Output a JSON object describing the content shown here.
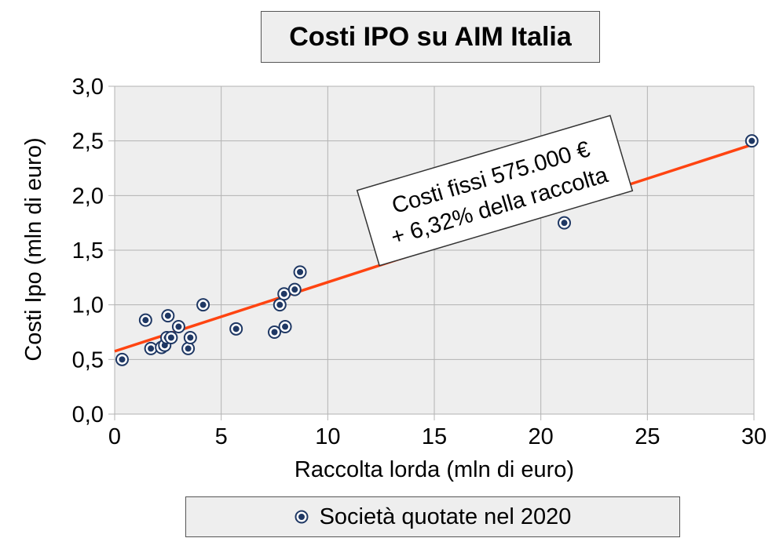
{
  "colors": {
    "plot_bg": "#eeeeee",
    "grid": "#b3b3b3",
    "marker_fill": "#1f3864",
    "trend": "#ff4411",
    "text": "#000000"
  },
  "chart_data": {
    "type": "scatter",
    "title": "Costi IPO su AIM Italia",
    "xlabel": "Raccolta lorda (mln di euro)",
    "ylabel": "Costi Ipo (mln di euro)",
    "xlim": [
      0,
      30
    ],
    "ylim": [
      0,
      3
    ],
    "x_ticks": [
      0,
      5,
      10,
      15,
      20,
      25,
      30
    ],
    "y_ticks": [
      0,
      0.5,
      1,
      1.5,
      2,
      2.5,
      3
    ],
    "x_tick_labels": [
      "0",
      "5",
      "10",
      "15",
      "20",
      "25",
      "30"
    ],
    "y_tick_labels": [
      "0,0",
      "0,5",
      "1,0",
      "1,5",
      "2,0",
      "2,5",
      "3,0"
    ],
    "grid": true,
    "legend_position": "bottom",
    "series": [
      {
        "name": "Società quotate nel 2020",
        "points": [
          {
            "x": 0.35,
            "y": 0.5
          },
          {
            "x": 1.45,
            "y": 0.86
          },
          {
            "x": 1.7,
            "y": 0.6
          },
          {
            "x": 2.2,
            "y": 0.61
          },
          {
            "x": 2.35,
            "y": 0.63
          },
          {
            "x": 2.45,
            "y": 0.7
          },
          {
            "x": 2.5,
            "y": 0.9
          },
          {
            "x": 2.65,
            "y": 0.7
          },
          {
            "x": 3.0,
            "y": 0.8
          },
          {
            "x": 3.45,
            "y": 0.6
          },
          {
            "x": 3.55,
            "y": 0.7
          },
          {
            "x": 4.15,
            "y": 1.0
          },
          {
            "x": 5.7,
            "y": 0.78
          },
          {
            "x": 7.5,
            "y": 0.75
          },
          {
            "x": 7.75,
            "y": 1.0
          },
          {
            "x": 7.95,
            "y": 1.1
          },
          {
            "x": 8.0,
            "y": 0.8
          },
          {
            "x": 8.45,
            "y": 1.14
          },
          {
            "x": 8.7,
            "y": 1.3
          },
          {
            "x": 21.1,
            "y": 1.75
          },
          {
            "x": 29.9,
            "y": 2.5
          }
        ]
      }
    ],
    "trendline": {
      "intercept": 0.575,
      "slope": 0.0632,
      "x_range": [
        0,
        30
      ]
    },
    "annotation": {
      "lines": [
        "Costi fissi 575.000 €",
        "+ 6,32% della raccolta"
      ]
    }
  }
}
